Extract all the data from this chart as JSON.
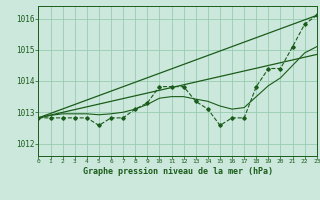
{
  "title": "Graphe pression niveau de la mer (hPa)",
  "bg_color": "#cce8dc",
  "grid_color": "#99ccb3",
  "line_color": "#1a5c1a",
  "xlim": [
    0,
    23
  ],
  "ylim": [
    1011.6,
    1016.4
  ],
  "yticks": [
    1012,
    1013,
    1014,
    1015,
    1016
  ],
  "xticks": [
    0,
    1,
    2,
    3,
    4,
    5,
    6,
    7,
    8,
    9,
    10,
    11,
    12,
    13,
    14,
    15,
    16,
    17,
    18,
    19,
    20,
    21,
    22,
    23
  ],
  "wavy": [
    1012.82,
    1012.82,
    1012.82,
    1012.82,
    1012.82,
    1012.58,
    1012.82,
    1012.82,
    1013.1,
    1013.3,
    1013.82,
    1013.82,
    1013.82,
    1013.35,
    1013.1,
    1012.58,
    1012.82,
    1012.82,
    1013.82,
    1014.4,
    1014.4,
    1015.1,
    1015.82,
    1016.1
  ],
  "trend1_x": [
    0,
    23
  ],
  "trend1_y": [
    1012.82,
    1016.1
  ],
  "trend2_x": [
    0,
    23
  ],
  "trend2_y": [
    1012.82,
    1014.85
  ],
  "smooth": [
    1012.82,
    1012.9,
    1012.95,
    1012.95,
    1012.95,
    1012.92,
    1012.95,
    1013.0,
    1013.1,
    1013.25,
    1013.45,
    1013.5,
    1013.5,
    1013.42,
    1013.35,
    1013.2,
    1013.1,
    1013.15,
    1013.5,
    1013.85,
    1014.1,
    1014.5,
    1014.9,
    1015.1
  ]
}
